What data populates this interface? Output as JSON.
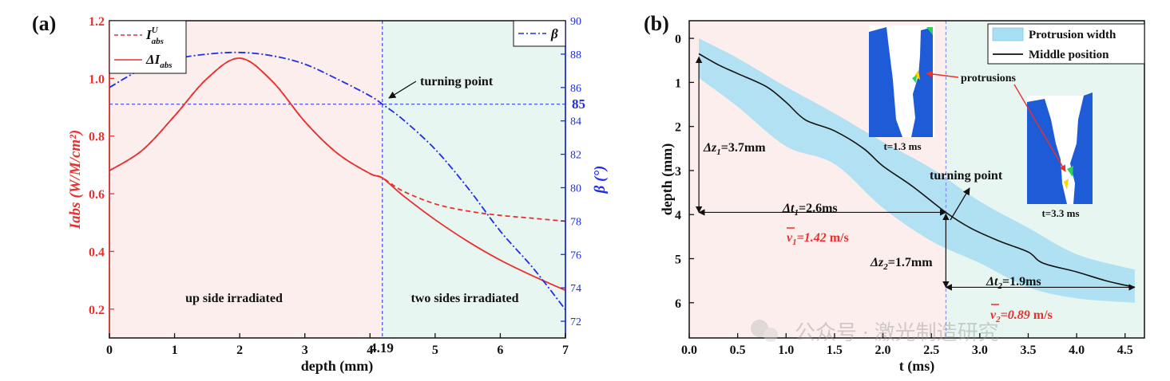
{
  "colors": {
    "red": "#e8312f",
    "blue": "#1f2de6",
    "pink_bg": "#fdeeee",
    "green_bg": "#e8f6f1",
    "band": "#a8dff2",
    "black": "#111111",
    "solid_blue": "#1e5bd6"
  },
  "panel_a": {
    "panel_label": "(a)",
    "xlabel": "depth (mm)",
    "ylabel_left": "Iabs (W/M/cm²)",
    "ylabel_right": "β (°)",
    "xlim": [
      0,
      7
    ],
    "ylim_left": [
      0.1,
      1.2
    ],
    "ylim_right": [
      71,
      90
    ],
    "x_ticks": [
      "0",
      "1",
      "2",
      "3",
      "4",
      "5",
      "6",
      "7"
    ],
    "y_left_ticks": [
      "0.2",
      "0.4",
      "0.6",
      "0.8",
      "1.0",
      "1.2"
    ],
    "y_right_ticks": [
      "72",
      "74",
      "76",
      "78",
      "80",
      "82",
      "84",
      "86",
      "88",
      "90"
    ],
    "vline_x": 4.19,
    "vline_label": "4.19",
    "hline_beta": 85,
    "hline_label": "85",
    "legend_left": {
      "iu": "I",
      "iu_sup": "U",
      "iu_sub": "abs",
      "di": "ΔI",
      "di_sub": "abs"
    },
    "legend_right": {
      "beta": "β"
    },
    "annotation_turning": "turning point",
    "region_left": "up side irradiated",
    "region_right": "two sides irradiated"
  },
  "panel_b": {
    "panel_label": "(b)",
    "xlabel": "t (ms)",
    "ylabel": "depth (mm)",
    "xlim": [
      0,
      4.7
    ],
    "ylim": [
      -0.4,
      6.8
    ],
    "x_ticks": [
      "0.0",
      "0.5",
      "1.0",
      "1.5",
      "2.0",
      "2.5",
      "3.0",
      "3.5",
      "4.0",
      "4.5"
    ],
    "y_ticks": [
      "0",
      "1",
      "2",
      "3",
      "4",
      "5",
      "6"
    ],
    "vline_t": 2.65,
    "legend": {
      "band": "Protrusion width",
      "line": "Middle position"
    },
    "dz1": {
      "main": "Δz",
      "sub": "1",
      "val": "=3.7mm"
    },
    "dt1": {
      "main": "Δt",
      "sub": "1",
      "val": "=2.6ms"
    },
    "v1": {
      "main": "v",
      "sub": "1",
      "val": "=1.42",
      "unit": " m/s"
    },
    "dz2": {
      "main": "Δz",
      "sub": "2",
      "val": "=1.7mm"
    },
    "dt2": {
      "main": "Δt",
      "sub": "2",
      "val": "=1.9ms"
    },
    "v2": {
      "main": "v",
      "sub": "2",
      "val": "=0.89",
      "unit": " m/s"
    },
    "turning": "turning point",
    "protrusions": "protrusions",
    "inset1_label": "t=1.3 ms",
    "inset2_label": "t=3.3 ms"
  },
  "watermark": "公众号 · 激光制造研究",
  "chart_data": [
    {
      "type": "line",
      "title": "(a)",
      "xlabel": "depth (mm)",
      "ylabel": "Iabs (W/M/cm²)",
      "y2label": "β (°)",
      "xlim": [
        0,
        7
      ],
      "ylim": [
        0.1,
        1.2
      ],
      "y2lim": [
        71,
        90
      ],
      "series": [
        {
          "name": "I^U_abs",
          "axis": "left",
          "style": "dashed",
          "color": "red",
          "x": [
            0,
            0.5,
            1.0,
            1.5,
            2.0,
            2.5,
            3.0,
            3.5,
            4.0,
            4.19,
            4.5,
            5.0,
            5.5,
            6.0,
            6.5,
            7.0
          ],
          "y": [
            0.68,
            0.75,
            0.87,
            1.0,
            1.07,
            0.99,
            0.85,
            0.74,
            0.67,
            0.655,
            0.61,
            0.565,
            0.54,
            0.525,
            0.515,
            0.505
          ]
        },
        {
          "name": "ΔI_abs",
          "axis": "left",
          "style": "solid",
          "color": "red",
          "x": [
            0,
            0.5,
            1.0,
            1.5,
            2.0,
            2.5,
            3.0,
            3.5,
            4.0,
            4.19,
            4.5,
            5.0,
            5.5,
            6.0,
            6.5,
            7.0
          ],
          "y": [
            0.68,
            0.75,
            0.87,
            1.0,
            1.07,
            0.99,
            0.85,
            0.74,
            0.67,
            0.655,
            0.595,
            0.51,
            0.435,
            0.37,
            0.315,
            0.265
          ]
        },
        {
          "name": "β",
          "axis": "right",
          "style": "dashdot",
          "color": "blue",
          "x": [
            0,
            0.5,
            1.0,
            1.5,
            2.0,
            2.5,
            3.0,
            3.5,
            4.0,
            4.19,
            4.5,
            5.0,
            5.5,
            6.0,
            6.5,
            7.0
          ],
          "y": [
            86.0,
            87.1,
            87.7,
            88.0,
            88.1,
            87.9,
            87.4,
            86.5,
            85.5,
            85.0,
            84.1,
            82.3,
            80.0,
            77.4,
            75.2,
            72.7
          ]
        }
      ],
      "reference_lines": {
        "vertical_x": 4.19,
        "horizontal_beta": 85
      }
    },
    {
      "type": "line",
      "title": "(b)",
      "xlabel": "t (ms)",
      "ylabel": "depth (mm)",
      "xlim": [
        0,
        4.7
      ],
      "ylim": [
        -0.4,
        6.8
      ],
      "y_inverted": true,
      "series": [
        {
          "name": "Middle position",
          "style": "solid",
          "color": "black",
          "x": [
            0.1,
            0.3,
            0.5,
            0.8,
            1.0,
            1.2,
            1.5,
            1.8,
            2.0,
            2.3,
            2.65,
            2.9,
            3.2,
            3.5,
            3.65,
            4.0,
            4.3,
            4.6
          ],
          "y": [
            0.35,
            0.6,
            0.8,
            1.1,
            1.45,
            1.85,
            2.1,
            2.5,
            2.9,
            3.35,
            3.95,
            4.3,
            4.6,
            4.85,
            5.1,
            5.3,
            5.5,
            5.65
          ]
        },
        {
          "name": "Protrusion width",
          "style": "band",
          "color": "lightblue",
          "x": [
            0.1,
            0.5,
            1.0,
            1.5,
            2.0,
            2.5,
            3.0,
            3.5,
            4.0,
            4.6
          ],
          "y_low": [
            0.0,
            0.45,
            1.1,
            1.7,
            2.35,
            2.95,
            3.7,
            4.3,
            4.9,
            5.25
          ],
          "y_high": [
            0.9,
            1.55,
            2.45,
            2.85,
            3.85,
            4.6,
            5.1,
            5.65,
            5.9,
            6.0
          ]
        }
      ],
      "annotations": {
        "dz1_mm": 3.7,
        "dt1_ms": 2.6,
        "v1_mps": 1.42,
        "dz2_mm": 1.7,
        "dt2_ms": 1.9,
        "v2_mps": 0.89,
        "turning_t": 2.65
      }
    }
  ]
}
